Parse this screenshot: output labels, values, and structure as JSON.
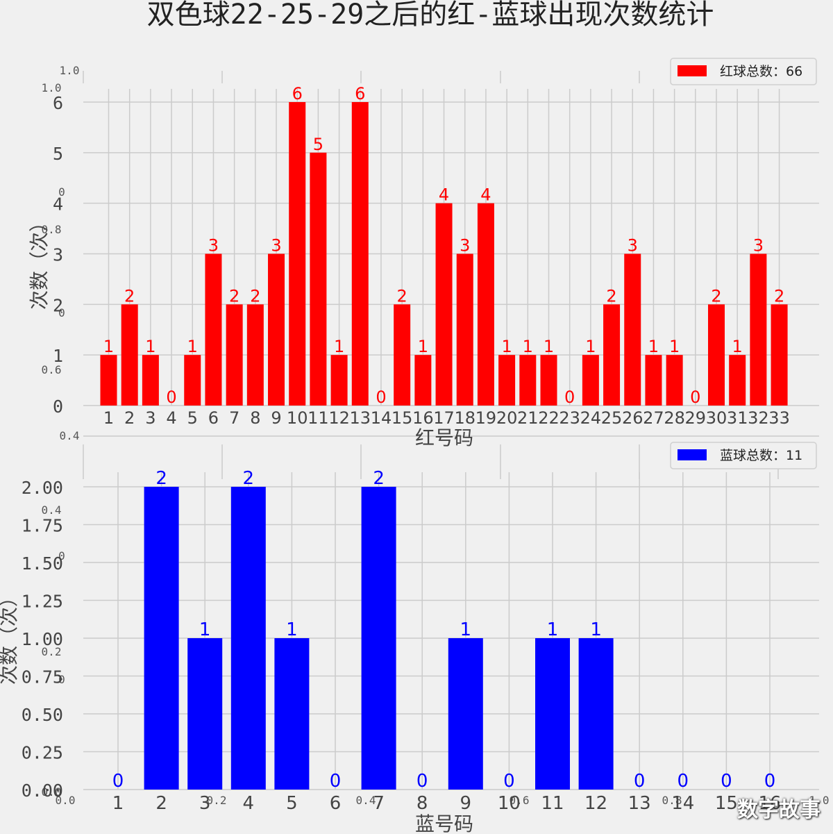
{
  "figure": {
    "title": "双色球22-25-29之后的红-蓝球出现次数统计",
    "watermark": "数字故事",
    "background": "#f0f0f0",
    "grid_color": "#cbcbcb",
    "ghost_axis": {
      "xticks": [
        "0.0",
        "0.2",
        "0.4",
        "0.6",
        "0.8",
        "1.0"
      ],
      "yticks": [
        "0.0",
        "0.2",
        "0.4",
        "0.6",
        "0.8",
        "1.0"
      ]
    }
  },
  "chart_data": [
    {
      "type": "bar",
      "color": "#ff0000",
      "label_color": "#ff0000",
      "categories": [
        "1",
        "2",
        "3",
        "4",
        "5",
        "6",
        "7",
        "8",
        "9",
        "10",
        "11",
        "12",
        "13",
        "14",
        "15",
        "16",
        "17",
        "18",
        "19",
        "20",
        "21",
        "22",
        "23",
        "24",
        "25",
        "26",
        "27",
        "28",
        "29",
        "30",
        "31",
        "32",
        "33"
      ],
      "values": [
        1,
        2,
        1,
        0,
        1,
        3,
        2,
        2,
        3,
        6,
        5,
        1,
        6,
        0,
        2,
        1,
        4,
        3,
        4,
        1,
        1,
        1,
        0,
        1,
        2,
        3,
        1,
        1,
        0,
        2,
        1,
        3,
        2
      ],
      "xlabel": "红号码",
      "ylabel": "次数（次）",
      "ylim": [
        0,
        6
      ],
      "yticks": [
        "0",
        "1",
        "2",
        "3",
        "4",
        "5",
        "6"
      ],
      "legend": {
        "label": "红球总数：66",
        "position": "top-right"
      },
      "grid": true
    },
    {
      "type": "bar",
      "color": "#0000ff",
      "label_color": "#0000ff",
      "categories": [
        "1",
        "2",
        "3",
        "4",
        "5",
        "6",
        "7",
        "8",
        "9",
        "10",
        "11",
        "12",
        "13",
        "14",
        "15",
        "16"
      ],
      "values": [
        0,
        2,
        1,
        2,
        1,
        0,
        2,
        0,
        1,
        0,
        1,
        1,
        0,
        0,
        0,
        0
      ],
      "xlabel": "蓝号码",
      "ylabel": "次数（次）",
      "ylim": [
        0,
        2
      ],
      "yticks": [
        "0.00",
        "0.25",
        "0.50",
        "0.75",
        "1.00",
        "1.25",
        "1.50",
        "1.75",
        "2.00"
      ],
      "legend": {
        "label": "蓝球总数：11",
        "position": "top-right"
      },
      "grid": true
    }
  ]
}
